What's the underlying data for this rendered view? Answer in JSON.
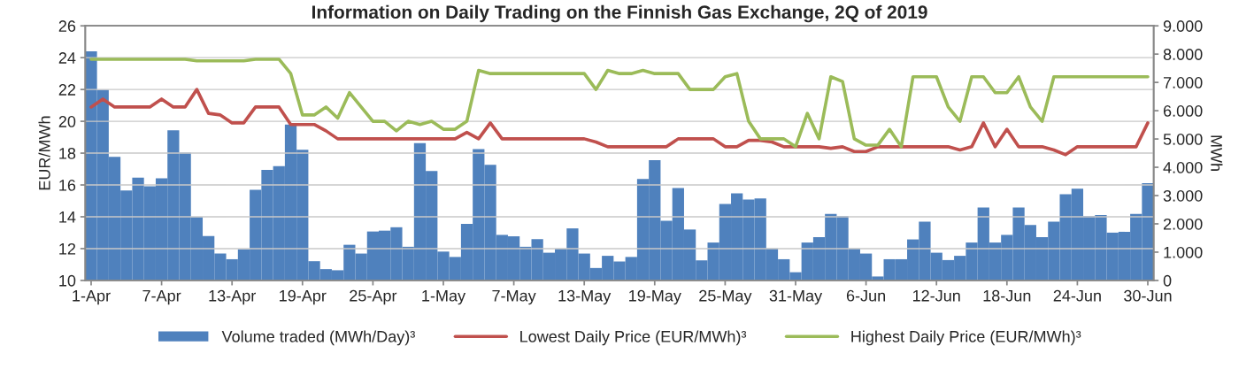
{
  "chart_data": {
    "type": "bar",
    "title": "Information on Daily Trading on the Finnish Gas Exchange, 2Q of 2019",
    "ylabel": "EUR/MWh",
    "y2label": "MWh",
    "categories": [
      "1-Apr",
      null,
      null,
      null,
      null,
      null,
      "7-Apr",
      null,
      null,
      null,
      null,
      null,
      "13-Apr",
      null,
      null,
      null,
      null,
      null,
      "19-Apr",
      null,
      null,
      null,
      null,
      null,
      "25-Apr",
      null,
      null,
      null,
      null,
      null,
      "1-May",
      null,
      null,
      null,
      null,
      null,
      "7-May",
      null,
      null,
      null,
      null,
      null,
      "13-May",
      null,
      null,
      null,
      null,
      null,
      "19-May",
      null,
      null,
      null,
      null,
      null,
      "25-May",
      null,
      null,
      null,
      null,
      null,
      "31-May",
      null,
      null,
      null,
      null,
      null,
      "6-Jun",
      null,
      null,
      null,
      null,
      null,
      "12-Jun",
      null,
      null,
      null,
      null,
      null,
      "18-Jun",
      null,
      null,
      null,
      null,
      null,
      "24-Jun",
      null,
      null,
      null,
      null,
      null,
      "30-Jun"
    ],
    "series": [
      {
        "name": "Volume traded (MWh/Day)³",
        "axis": "y2",
        "color": "#4f81bd",
        "values": [
          8100,
          6740,
          4370,
          3180,
          3630,
          3330,
          3610,
          5310,
          4520,
          2240,
          1570,
          950,
          750,
          1100,
          3200,
          3910,
          4040,
          5510,
          4620,
          680,
          400,
          360,
          1260,
          950,
          1730,
          1760,
          1880,
          1190,
          4850,
          3870,
          1020,
          830,
          2000,
          4640,
          4090,
          1610,
          1560,
          1190,
          1460,
          980,
          1120,
          1840,
          950,
          440,
          870,
          670,
          830,
          3590,
          4250,
          2110,
          3270,
          1800,
          710,
          1340,
          2700,
          3080,
          2860,
          2900,
          1130,
          750,
          290,
          1340,
          1530,
          2350,
          2270,
          1130,
          950,
          140,
          750,
          750,
          1450,
          2080,
          980,
          720,
          870,
          1340,
          2580,
          1340,
          1610,
          2580,
          1960,
          1530,
          2080,
          3050,
          3240,
          2270,
          2310,
          1690,
          1720,
          2350,
          3440
        ]
      },
      {
        "name": "Lowest Daily Price (EUR/MWh)³",
        "type": "line",
        "color": "#c0504d",
        "values": [
          20.9,
          21.4,
          20.9,
          20.9,
          20.9,
          20.9,
          21.4,
          20.9,
          20.9,
          22.0,
          20.5,
          20.4,
          19.9,
          19.9,
          20.9,
          20.9,
          20.9,
          19.8,
          19.8,
          19.8,
          19.4,
          18.9,
          18.9,
          18.9,
          18.9,
          18.9,
          18.9,
          18.9,
          18.9,
          18.9,
          18.9,
          18.9,
          19.3,
          18.9,
          19.9,
          18.9,
          18.9,
          18.9,
          18.9,
          18.9,
          18.9,
          18.9,
          18.9,
          18.7,
          18.4,
          18.4,
          18.4,
          18.4,
          18.4,
          18.4,
          18.9,
          18.9,
          18.9,
          18.9,
          18.4,
          18.4,
          18.8,
          18.8,
          18.7,
          18.4,
          18.4,
          18.4,
          18.4,
          18.3,
          18.4,
          18.1,
          18.1,
          18.4,
          18.4,
          18.4,
          18.4,
          18.4,
          18.4,
          18.4,
          18.2,
          18.4,
          19.9,
          18.4,
          19.5,
          18.4,
          18.4,
          18.4,
          18.2,
          17.9,
          18.4,
          18.4,
          18.4,
          18.4,
          18.4,
          18.4,
          19.9
        ]
      },
      {
        "name": "Highest Daily Price (EUR/MWh)³",
        "type": "line",
        "color": "#9bbb59",
        "values": [
          23.9,
          23.9,
          23.9,
          23.9,
          23.9,
          23.9,
          23.9,
          23.9,
          23.9,
          23.8,
          23.8,
          23.8,
          23.8,
          23.8,
          23.9,
          23.9,
          23.9,
          23.0,
          20.4,
          20.4,
          20.9,
          20.2,
          21.8,
          20.9,
          20.0,
          20.0,
          19.4,
          20.0,
          19.8,
          20.0,
          19.5,
          19.5,
          20.0,
          23.2,
          23.0,
          23.0,
          23.0,
          23.0,
          23.0,
          23.0,
          23.0,
          23.0,
          23.0,
          22.0,
          23.2,
          23.0,
          23.0,
          23.2,
          23.0,
          23.0,
          23.0,
          22.0,
          22.0,
          22.0,
          22.8,
          23.0,
          20.0,
          18.9,
          18.9,
          18.9,
          18.4,
          20.5,
          18.9,
          22.8,
          22.5,
          18.9,
          18.5,
          18.5,
          19.5,
          18.4,
          22.8,
          22.8,
          22.8,
          20.9,
          20.0,
          22.8,
          22.8,
          21.8,
          21.8,
          22.8,
          20.9,
          20.0,
          22.8,
          22.8,
          22.8,
          22.8,
          22.8,
          22.8,
          22.8,
          22.8,
          22.8
        ]
      }
    ],
    "ylim": [
      10,
      26
    ],
    "yticks": [
      10,
      12,
      14,
      16,
      18,
      20,
      22,
      24,
      26
    ],
    "y2lim": [
      0,
      9000
    ],
    "y2ticks": [
      0,
      {
        "value": 1000,
        "label": "1.000"
      },
      {
        "value": 2000,
        "label": "2.000"
      },
      {
        "value": 3000,
        "label": "3.000"
      },
      {
        "value": 4000,
        "label": "4.000"
      },
      {
        "value": 5000,
        "label": "5.000"
      },
      {
        "value": 6000,
        "label": "6.000"
      },
      {
        "value": 7000,
        "label": "7.000"
      },
      {
        "value": 8000,
        "label": "8.000"
      },
      {
        "value": 9000,
        "label": "9.000"
      }
    ],
    "grid": "y",
    "legend": "bottom",
    "marker": "none",
    "line_style": "solid"
  }
}
